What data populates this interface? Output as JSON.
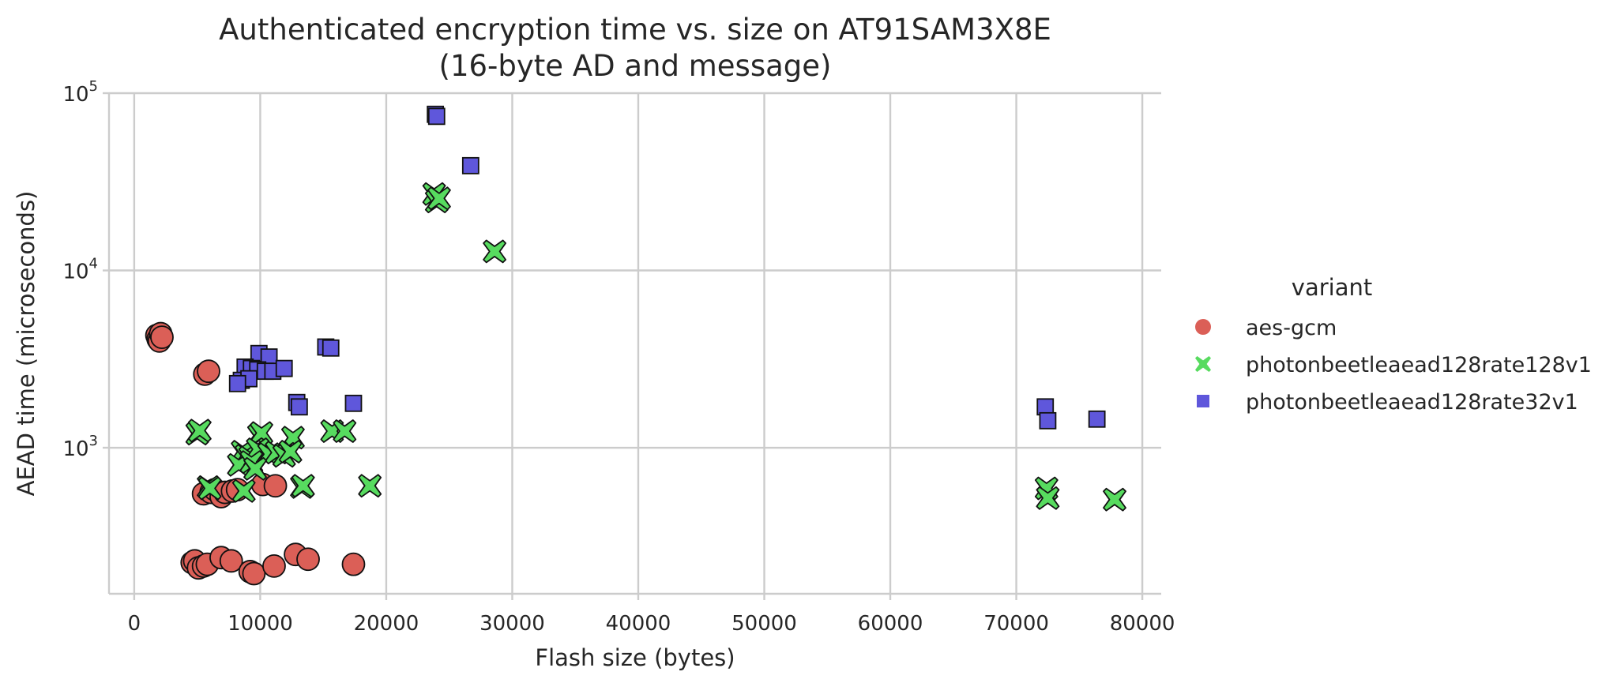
{
  "chart_data": {
    "type": "scatter",
    "title": "Authenticated encryption time vs. size on AT91SAM3X8E\n(16-byte AD and message)",
    "xlabel": "Flash size (bytes)",
    "ylabel": "AEAD time (microseconds)",
    "xlim": [
      -2000,
      81500
    ],
    "ylim": [
      150,
      100000
    ],
    "yscale": "log",
    "x_ticks": [
      0,
      10000,
      20000,
      30000,
      40000,
      50000,
      60000,
      70000,
      80000
    ],
    "y_ticks": [
      {
        "value": 1000,
        "base": "10",
        "exp": "3"
      },
      {
        "value": 10000,
        "base": "10",
        "exp": "4"
      },
      {
        "value": 100000,
        "base": "10",
        "exp": "5"
      }
    ],
    "grid": true,
    "legend": {
      "title": "variant",
      "position": "right"
    },
    "series": [
      {
        "name": "aes-gcm",
        "marker": "circle",
        "color": "#db5f57",
        "points": [
          [
            1800,
            4300
          ],
          [
            1900,
            4100
          ],
          [
            2000,
            4000
          ],
          [
            2100,
            4400
          ],
          [
            2200,
            4200
          ],
          [
            5600,
            2600
          ],
          [
            5900,
            2700
          ],
          [
            5500,
            550
          ],
          [
            6100,
            560
          ],
          [
            6400,
            580
          ],
          [
            6900,
            530
          ],
          [
            7200,
            560
          ],
          [
            7800,
            570
          ],
          [
            8200,
            580
          ],
          [
            10200,
            620
          ],
          [
            11200,
            610
          ],
          [
            4600,
            225
          ],
          [
            4800,
            230
          ],
          [
            5100,
            210
          ],
          [
            5500,
            215
          ],
          [
            5800,
            220
          ],
          [
            6900,
            240
          ],
          [
            7700,
            230
          ],
          [
            9200,
            200
          ],
          [
            9500,
            195
          ],
          [
            11100,
            215
          ],
          [
            12800,
            250
          ],
          [
            13800,
            235
          ],
          [
            17400,
            220
          ]
        ]
      },
      {
        "name": "photonbeetleaead128rate128v1",
        "marker": "x",
        "color": "#57db5f",
        "points": [
          [
            23800,
            27000
          ],
          [
            24000,
            24500
          ],
          [
            24200,
            25500
          ],
          [
            28600,
            12800
          ],
          [
            5000,
            1200
          ],
          [
            5200,
            1250
          ],
          [
            9900,
            1170
          ],
          [
            10100,
            1210
          ],
          [
            12600,
            1140
          ],
          [
            15700,
            1240
          ],
          [
            16700,
            1240
          ],
          [
            8600,
            950
          ],
          [
            8900,
            900
          ],
          [
            9200,
            880
          ],
          [
            9800,
            980
          ],
          [
            10700,
            920
          ],
          [
            11300,
            940
          ],
          [
            11900,
            900
          ],
          [
            12400,
            950
          ],
          [
            8300,
            800
          ],
          [
            9300,
            830
          ],
          [
            9600,
            760
          ],
          [
            5900,
            600
          ],
          [
            6000,
            590
          ],
          [
            8700,
            570
          ],
          [
            13300,
            600
          ],
          [
            13400,
            610
          ],
          [
            18700,
            610
          ],
          [
            72400,
            590
          ],
          [
            72500,
            520
          ],
          [
            77800,
            510
          ]
        ]
      },
      {
        "name": "photonbeetleaead128rate32v1",
        "marker": "square",
        "color": "#5f57db",
        "points": [
          [
            23900,
            76000
          ],
          [
            24000,
            74000
          ],
          [
            26700,
            39000
          ],
          [
            15200,
            3700
          ],
          [
            15600,
            3650
          ],
          [
            9900,
            3400
          ],
          [
            10700,
            3250
          ],
          [
            8800,
            2850
          ],
          [
            9300,
            2800
          ],
          [
            9800,
            2750
          ],
          [
            10400,
            2700
          ],
          [
            11000,
            2700
          ],
          [
            11900,
            2800
          ],
          [
            8500,
            2400
          ],
          [
            9100,
            2450
          ],
          [
            8200,
            2300
          ],
          [
            12900,
            1800
          ],
          [
            13100,
            1700
          ],
          [
            17400,
            1780
          ],
          [
            72300,
            1700
          ],
          [
            72500,
            1420
          ],
          [
            76400,
            1450
          ]
        ]
      }
    ]
  }
}
